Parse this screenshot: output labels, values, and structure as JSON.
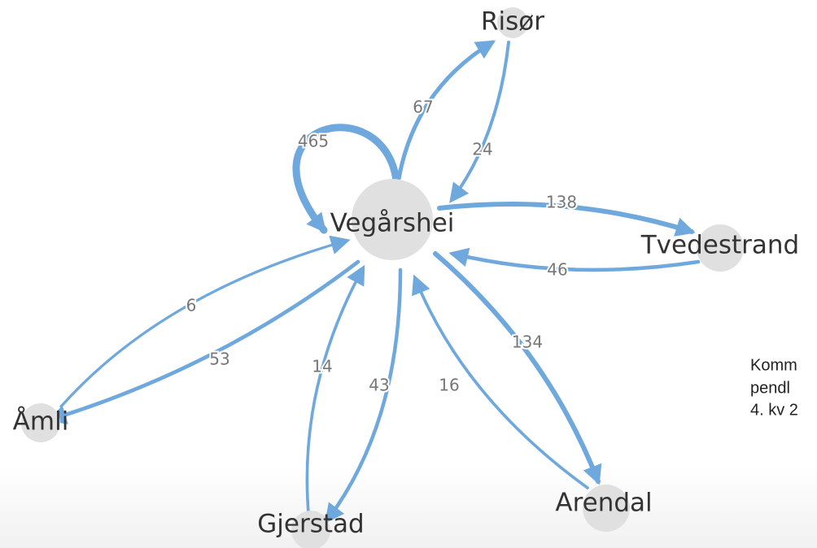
{
  "nodes": [
    {
      "label": "Vegårshei"
    },
    {
      "label": "Risør"
    },
    {
      "label": "Tvedestrand"
    },
    {
      "label": "Åmli"
    },
    {
      "label": "Gjerstad"
    },
    {
      "label": "Arendal"
    }
  ],
  "edges": [
    {
      "from": 0,
      "to": 0,
      "label": 465
    },
    {
      "from": 0,
      "to": 1,
      "label": 67
    },
    {
      "from": 1,
      "to": 0,
      "label": 24
    },
    {
      "from": 0,
      "to": 2,
      "label": 138
    },
    {
      "from": 2,
      "to": 0,
      "label": 46
    },
    {
      "from": 0,
      "to": 5,
      "label": 134
    },
    {
      "from": 5,
      "to": 0,
      "label": 16
    },
    {
      "from": 0,
      "to": 4,
      "label": 43
    },
    {
      "from": 4,
      "to": 0,
      "label": 14
    },
    {
      "from": 0,
      "to": 3,
      "label": 53
    },
    {
      "from": 3,
      "to": 0,
      "label": 6
    }
  ],
  "caption": [
    "Komm",
    "pendl",
    "4. kv 2"
  ]
}
